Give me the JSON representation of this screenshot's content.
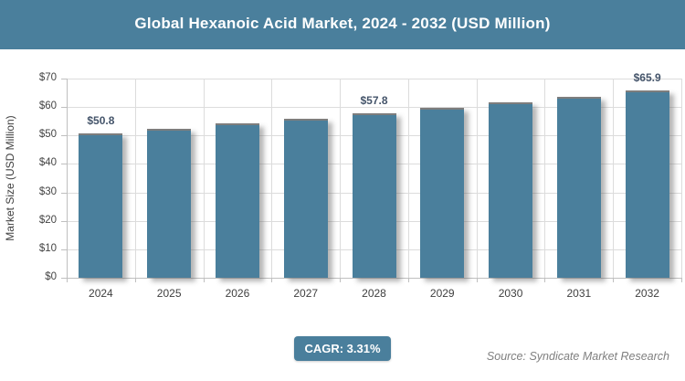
{
  "header": {
    "title": "Global Hexanoic Acid Market, 2024 - 2032 (USD Million)"
  },
  "chart_data": {
    "type": "bar",
    "title": "Global Hexanoic Acid Market, 2024 - 2032 (USD Million)",
    "categories": [
      "2024",
      "2025",
      "2026",
      "2027",
      "2028",
      "2029",
      "2030",
      "2031",
      "2032"
    ],
    "values": [
      50.8,
      52.5,
      54.2,
      56.0,
      57.8,
      59.7,
      61.7,
      63.7,
      65.9
    ],
    "data_labels": [
      "$50.8",
      "",
      "",
      "",
      "$57.8",
      "",
      "",
      "",
      "$65.9"
    ],
    "xlabel": "",
    "ylabel": "Market Size (USD Million)",
    "ylim": [
      0,
      70
    ],
    "ytick_step": 10,
    "ytick_labels": [
      "$0",
      "$10",
      "$20",
      "$30",
      "$40",
      "$50",
      "$60",
      "$70"
    ],
    "grid": true,
    "legend": "none",
    "bar_color": "#4a7f9c"
  },
  "footer": {
    "cagr_label": "CAGR: 3.31%",
    "source": "Source: Syndicate Market Research"
  },
  "colors": {
    "header_bg": "#4a7f9c",
    "header_text": "#ffffff",
    "bar": "#4a7f9c",
    "badge_bg": "#4a7f9c",
    "data_label": "#44546a",
    "axis_text": "#404040",
    "gridline": "#dcdcdc",
    "axis_line": "#bfbfbf",
    "source_text": "#7f7f7f"
  }
}
